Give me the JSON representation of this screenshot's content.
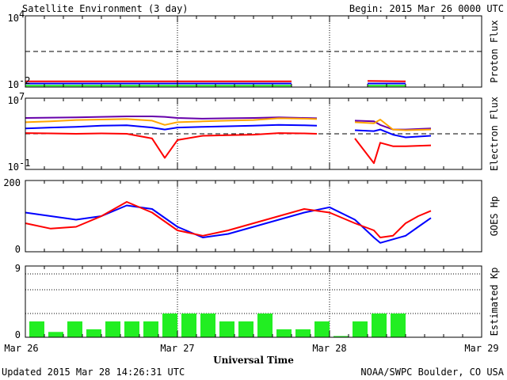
{
  "header": {
    "title": "Satellite Environment (3 day)",
    "begin": "Begin:  2015 Mar 26 0000 UTC"
  },
  "footer": {
    "updated": "Updated 2015 Mar 28 14:26:31 UTC",
    "credit": "NOAA/SWPC Boulder, CO USA"
  },
  "colors": {
    "red": "#ff0000",
    "blue": "#0000ff",
    "green": "#22ee22",
    "orange": "#ffa500",
    "purple": "#6600aa",
    "bar": "#22ee22"
  },
  "chart_data": [
    {
      "type": "line",
      "ylabel": "Proton Flux",
      "yscale": "log",
      "ylim": [
        0.01,
        10000
      ],
      "yticks": [
        "10",
        "10"
      ],
      "yticks_exp": [
        "4",
        "-2"
      ],
      "threshold": 10,
      "x_hours": [
        0,
        6,
        12,
        18,
        24,
        30,
        36,
        42,
        48,
        54,
        60
      ],
      "series": [
        {
          "color": "red",
          "values": [
            0.03,
            0.03,
            0.03,
            0.03,
            0.03,
            0.03,
            0.03,
            0.03,
            null,
            0.033,
            0.03
          ]
        },
        {
          "color": "blue",
          "values": [
            0.02,
            0.02,
            0.02,
            0.02,
            0.02,
            0.02,
            0.02,
            0.02,
            null,
            0.02,
            0.02
          ]
        },
        {
          "color": "green",
          "values": [
            0.013,
            0.013,
            0.013,
            0.013,
            0.013,
            0.013,
            0.013,
            0.013,
            null,
            0.013,
            0.013
          ]
        }
      ]
    },
    {
      "type": "line",
      "ylabel": "Electron Flux",
      "yscale": "log",
      "ylim": [
        0.1,
        10000000
      ],
      "yticks": [
        "10",
        "10"
      ],
      "yticks_exp": [
        "7",
        "-1"
      ],
      "threshold": 1000,
      "x_hours": [
        0,
        4,
        8,
        12,
        16,
        20,
        22,
        24,
        28,
        32,
        36,
        40,
        44,
        46,
        48,
        52,
        55,
        56,
        58,
        60,
        64
      ],
      "series": [
        {
          "color": "purple",
          "values": [
            60000,
            65000,
            70000,
            80000,
            90000,
            90000,
            80000,
            60000,
            50000,
            55000,
            60000,
            70000,
            60000,
            55000,
            null,
            30000,
            25000,
            10000,
            3000,
            3000,
            4000
          ]
        },
        {
          "color": "orange",
          "values": [
            20000,
            25000,
            35000,
            40000,
            45000,
            30000,
            10000,
            20000,
            25000,
            30000,
            35000,
            55000,
            50000,
            45000,
            null,
            20000,
            15000,
            40000,
            3000,
            2500,
            3000
          ]
        },
        {
          "color": "blue",
          "values": [
            4000,
            5000,
            6000,
            8000,
            9000,
            5000,
            3000,
            5000,
            6000,
            7000,
            8000,
            10000,
            9000,
            8000,
            null,
            2500,
            2000,
            3000,
            800,
            400,
            600
          ]
        },
        {
          "color": "red",
          "values": [
            1200,
            1100,
            1000,
            1100,
            1000,
            300,
            2,
            200,
            600,
            700,
            800,
            1200,
            1100,
            1000,
            null,
            300,
            0.5,
            100,
            40,
            40,
            50
          ]
        }
      ]
    },
    {
      "type": "line",
      "ylabel": "GOES Hp",
      "ylim": [
        0,
        200
      ],
      "yticks": [
        "200",
        "0"
      ],
      "x_hours": [
        0,
        4,
        8,
        12,
        16,
        20,
        24,
        28,
        32,
        36,
        40,
        44,
        48,
        52,
        55,
        56,
        58,
        60,
        62,
        64
      ],
      "series": [
        {
          "color": "blue",
          "values": [
            110,
            100,
            90,
            100,
            130,
            120,
            70,
            40,
            50,
            70,
            90,
            110,
            125,
            90,
            40,
            25,
            35,
            45,
            70,
            95
          ]
        },
        {
          "color": "red",
          "values": [
            80,
            65,
            70,
            100,
            140,
            110,
            60,
            45,
            60,
            80,
            100,
            120,
            110,
            80,
            60,
            40,
            45,
            80,
            100,
            115
          ]
        }
      ]
    },
    {
      "type": "bar",
      "ylabel": "Estimated Kp",
      "ylim": [
        0,
        9
      ],
      "yticks": [
        "9",
        "0"
      ],
      "categories": [
        "0",
        "3",
        "6",
        "9",
        "12",
        "15",
        "18",
        "21",
        "24",
        "27",
        "30",
        "33",
        "36",
        "39",
        "42",
        "45",
        "48",
        "51",
        "54",
        "57",
        "60"
      ],
      "values": [
        2,
        0.67,
        2,
        1,
        2,
        2,
        2,
        3,
        3,
        3,
        2,
        2,
        3,
        1,
        1,
        2,
        0,
        2,
        3,
        3,
        null
      ]
    }
  ],
  "x_axis": {
    "labels": [
      "Mar 26",
      "Mar 27",
      "Mar 28",
      "Mar 29"
    ],
    "title": "Universal Time"
  }
}
